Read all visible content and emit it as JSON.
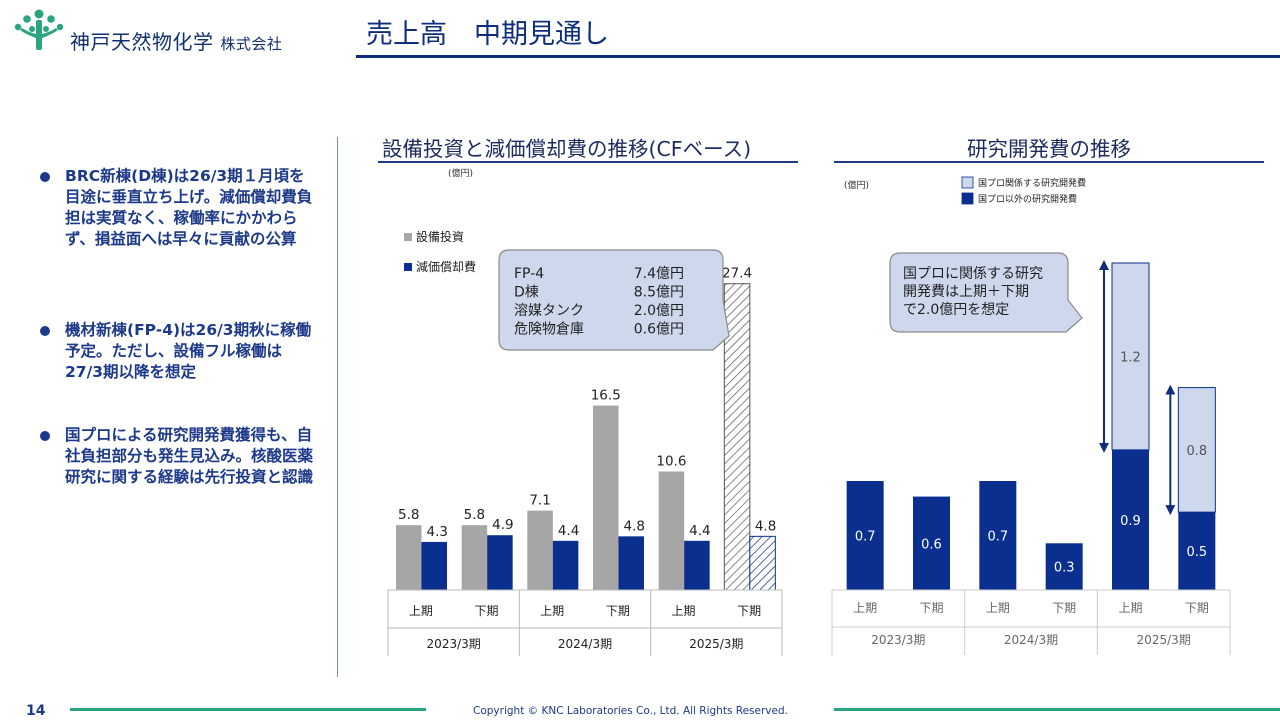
{
  "header": {
    "company_name": "神戸天然物化学",
    "company_suffix": "株式会社",
    "page_title": "売上高　中期見通し"
  },
  "bullets": [
    "BRC新棟(D棟)は26/3期１月頃を目途に垂直立ち上げ。減価償却費負担は実質なく、稼働率にかかわらず、損益面へは早々に貢献の公算",
    "機材新棟(FP-4)は26/3期秋に稼働予定。ただし、設備フル稼働は27/3期以降を想定",
    "国プロによる研究開発費獲得も、自社負担部分も発生見込み。核酸医薬研究に関する経験は先行投資と認識"
  ],
  "footer": {
    "page_number": "14",
    "copyright": "Copyright © KNC Laboratories Co., Ltd. All Rights Reserved."
  },
  "colors": {
    "brand_navy": "#0e2e7d",
    "capex_gray": "#a6a6a6",
    "depreciation_navy": "#0a2f8f",
    "rd_light": "#cdd8ec",
    "green_rule": "#2aa57f"
  },
  "chart_data": [
    {
      "type": "bar",
      "title": "設備投資と減価償却費の推移(CFベース)",
      "unit": "(億円)",
      "categories": [
        "上期",
        "下期",
        "上期",
        "下期",
        "上期",
        "下期"
      ],
      "groups": [
        {
          "label": "2023/3期",
          "span": 2
        },
        {
          "label": "2024/3期",
          "span": 2
        },
        {
          "label": "2025/3期",
          "span": 2
        }
      ],
      "series": [
        {
          "name": "設備投資",
          "color": "#a6a6a6",
          "values": [
            5.8,
            5.8,
            7.1,
            16.5,
            10.6,
            27.4
          ],
          "forecast_index": 5
        },
        {
          "name": "減価償却費",
          "color": "#0a2f8f",
          "values": [
            4.3,
            4.9,
            4.4,
            4.8,
            4.4,
            4.8
          ],
          "forecast_index": 5
        }
      ],
      "ylim": [
        0,
        28
      ],
      "callout": {
        "rows": [
          {
            "item": "FP-4",
            "amount": "7.4億円"
          },
          {
            "item": "D棟",
            "amount": "8.5億円"
          },
          {
            "item": "溶媒タンク",
            "amount": "2.0億円"
          },
          {
            "item": "危険物倉庫",
            "amount": "0.6億円"
          }
        ]
      }
    },
    {
      "type": "bar",
      "stacked": true,
      "title": "研究開発費の推移",
      "unit": "(億円)",
      "categories": [
        "上期",
        "下期",
        "上期",
        "下期",
        "上期",
        "下期"
      ],
      "groups": [
        {
          "label": "2023/3期",
          "span": 2
        },
        {
          "label": "2024/3期",
          "span": 2
        },
        {
          "label": "2025/3期",
          "span": 2
        }
      ],
      "series": [
        {
          "name": "国プロ以外の研究開発費",
          "color": "#0a2f8f",
          "values": [
            0.7,
            0.6,
            0.7,
            0.3,
            0.9,
            0.5
          ]
        },
        {
          "name": "国プロ関係する研究開発費",
          "color": "#cdd8ec",
          "values": [
            null,
            null,
            null,
            null,
            1.2,
            0.8
          ]
        }
      ],
      "legend_order": [
        "国プロ関係する研究開発費",
        "国プロ以外の研究開発費"
      ],
      "ylim": [
        0,
        2.2
      ],
      "callout": {
        "text_lines": [
          "国プロに関係する研究",
          "開発費は上期＋下期",
          "で2.0億円を想定"
        ]
      }
    }
  ]
}
